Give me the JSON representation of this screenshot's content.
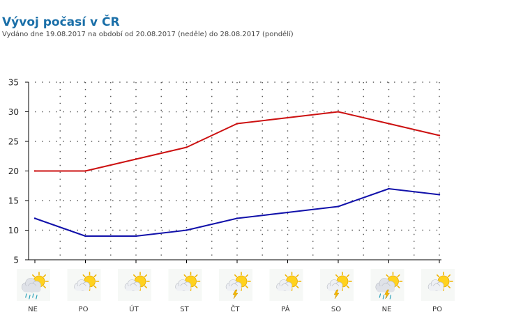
{
  "header": {
    "title": "Vývoj počasí v ČR",
    "subtitle": "Vydáno dne 19.08.2017 na období od 20.08.2017 (neděle) do 28.08.2017 (pondělí)"
  },
  "chart_data": {
    "type": "line",
    "title": "Vývoj počasí v ČR",
    "xlabel": "",
    "ylabel": "",
    "ylim": [
      5,
      35
    ],
    "yticks": [
      5,
      10,
      15,
      20,
      25,
      30,
      35
    ],
    "grid": true,
    "categories": [
      "NE",
      "PO",
      "ÚT",
      "ST",
      "ČT",
      "PÁ",
      "SO",
      "NE",
      "PO"
    ],
    "series": [
      {
        "color": "#cc1111",
        "values": [
          20,
          20,
          22,
          24,
          28,
          29,
          30,
          28,
          26
        ]
      },
      {
        "color": "#1111aa",
        "values": [
          12,
          9,
          9,
          10,
          12,
          13,
          14,
          17,
          16
        ]
      }
    ],
    "icons": [
      "cloud-sun-rain-icon",
      "sun-cloud-icon",
      "sun-cloud-icon",
      "sun-cloud-icon",
      "sun-cloud-storm-icon",
      "sun-cloud-icon",
      "sun-cloud-storm-icon",
      "cloud-sun-storm-rain-icon",
      "sun-cloud-icon"
    ]
  }
}
